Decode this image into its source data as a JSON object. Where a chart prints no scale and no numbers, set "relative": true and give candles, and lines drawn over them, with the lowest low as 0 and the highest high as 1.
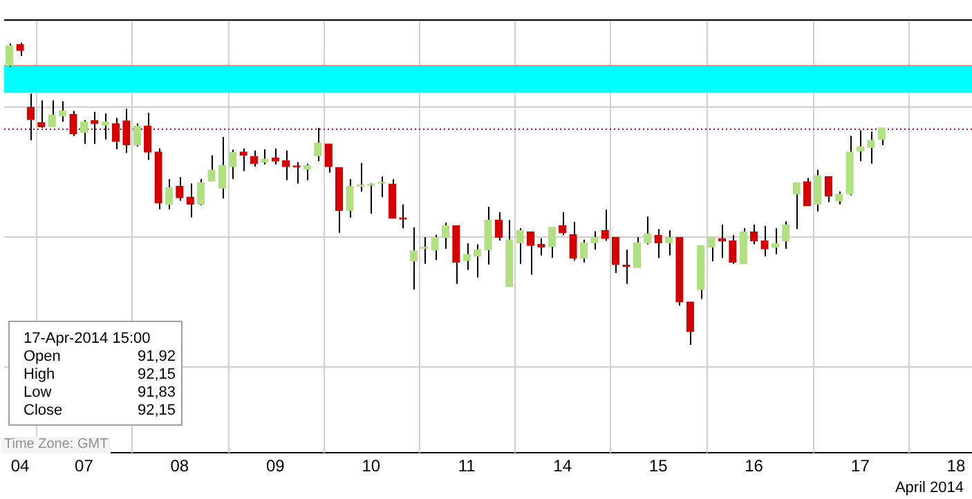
{
  "chart_data": {
    "type": "candlestick",
    "relative": true,
    "legend": false,
    "grid": true,
    "tick_labels": "x",
    "categories": [
      null,
      "04",
      null,
      null,
      null,
      null,
      null,
      "07",
      null,
      null,
      null,
      null,
      null,
      null,
      null,
      null,
      "08",
      null,
      null,
      null,
      null,
      null,
      null,
      null,
      null,
      "09",
      null,
      null,
      null,
      null,
      null,
      null,
      null,
      null,
      "10",
      null,
      null,
      null,
      null,
      null,
      null,
      null,
      null,
      "11",
      null,
      null,
      null,
      null,
      null,
      null,
      null,
      null,
      "14",
      null,
      null,
      null,
      null,
      null,
      null,
      null,
      null,
      "15",
      null,
      null,
      null,
      null,
      null,
      null,
      null,
      null,
      "16",
      null,
      null,
      null,
      null,
      null,
      null,
      null,
      null,
      null,
      "17",
      null,
      null,
      null,
      null,
      null,
      null,
      null,
      null,
      "18",
      null
    ],
    "ohlc": [
      [
        0.924,
        0.997,
        0.92,
        0.99
      ],
      [
        0.994,
        1.0,
        0.956,
        0.974
      ],
      [
        0.786,
        0.831,
        0.677,
        0.745
      ],
      [
        0.736,
        0.809,
        0.718,
        0.721
      ],
      [
        0.721,
        0.809,
        0.721,
        0.76
      ],
      [
        0.757,
        0.806,
        0.738,
        0.774
      ],
      [
        0.763,
        0.774,
        0.691,
        0.698
      ],
      [
        0.703,
        0.744,
        0.665,
        0.738
      ],
      [
        0.742,
        0.771,
        0.665,
        0.732
      ],
      [
        0.727,
        0.766,
        0.68,
        0.738
      ],
      [
        0.732,
        0.751,
        0.647,
        0.673
      ],
      [
        0.741,
        0.781,
        0.635,
        0.662
      ],
      [
        0.662,
        0.733,
        0.657,
        0.724
      ],
      [
        0.724,
        0.768,
        0.612,
        0.638
      ],
      [
        0.638,
        0.65,
        0.449,
        0.469
      ],
      [
        0.465,
        0.548,
        0.449,
        0.52
      ],
      [
        0.525,
        0.555,
        0.477,
        0.487
      ],
      [
        0.489,
        0.534,
        0.422,
        0.465
      ],
      [
        0.465,
        0.549,
        0.462,
        0.537
      ],
      [
        0.542,
        0.627,
        0.542,
        0.578
      ],
      [
        0.519,
        0.688,
        0.484,
        0.593
      ],
      [
        0.59,
        0.646,
        0.549,
        0.637
      ],
      [
        0.638,
        0.65,
        0.575,
        0.628
      ],
      [
        0.623,
        0.643,
        0.59,
        0.6
      ],
      [
        0.605,
        0.647,
        0.597,
        0.615
      ],
      [
        0.618,
        0.65,
        0.597,
        0.608
      ],
      [
        0.609,
        0.643,
        0.545,
        0.59
      ],
      [
        0.59,
        0.605,
        0.534,
        0.588
      ],
      [
        0.581,
        0.6,
        0.545,
        0.593
      ],
      [
        0.626,
        0.718,
        0.608,
        0.668
      ],
      [
        0.665,
        0.665,
        0.57,
        0.59
      ],
      [
        0.587,
        0.587,
        0.371,
        0.445
      ],
      [
        0.445,
        0.548,
        0.421,
        0.525
      ],
      [
        0.525,
        0.602,
        0.507,
        0.528
      ],
      [
        0.528,
        0.534,
        0.434,
        0.53
      ],
      [
        0.535,
        0.557,
        0.489,
        0.537
      ],
      [
        0.532,
        0.548,
        0.419,
        0.419
      ],
      [
        0.419,
        0.465,
        0.386,
        0.416
      ],
      [
        0.278,
        0.389,
        0.183,
        0.311
      ],
      [
        0.319,
        0.356,
        0.268,
        0.322
      ],
      [
        0.314,
        0.364,
        0.281,
        0.356
      ],
      [
        0.356,
        0.404,
        0.318,
        0.394
      ],
      [
        0.394,
        0.394,
        0.202,
        0.273
      ],
      [
        0.279,
        0.336,
        0.248,
        0.299
      ],
      [
        0.293,
        0.333,
        0.223,
        0.315
      ],
      [
        0.315,
        0.457,
        0.266,
        0.413
      ],
      [
        0.413,
        0.439,
        0.345,
        0.356
      ],
      [
        0.193,
        0.413,
        0.193,
        0.348
      ],
      [
        0.338,
        0.386,
        0.268,
        0.379
      ],
      [
        0.374,
        0.374,
        0.232,
        0.329
      ],
      [
        0.333,
        0.353,
        0.296,
        0.324
      ],
      [
        0.326,
        0.389,
        0.288,
        0.389
      ],
      [
        0.394,
        0.439,
        0.363,
        0.371
      ],
      [
        0.365,
        0.407,
        0.279,
        0.287
      ],
      [
        0.287,
        0.348,
        0.273,
        0.338
      ],
      [
        0.338,
        0.376,
        0.315,
        0.356
      ],
      [
        0.379,
        0.447,
        0.344,
        0.352
      ],
      [
        0.356,
        0.356,
        0.238,
        0.266
      ],
      [
        0.262,
        0.315,
        0.202,
        0.259
      ],
      [
        0.256,
        0.356,
        0.256,
        0.338
      ],
      [
        0.338,
        0.424,
        0.333,
        0.368
      ],
      [
        0.363,
        0.383,
        0.287,
        0.338
      ],
      [
        0.338,
        0.379,
        0.296,
        0.356
      ],
      [
        0.356,
        0.356,
        0.13,
        0.142
      ],
      [
        0.142,
        0.142,
        0.0,
        0.044
      ],
      [
        0.183,
        0.329,
        0.152,
        0.329
      ],
      [
        0.324,
        0.356,
        0.277,
        0.356
      ],
      [
        0.352,
        0.398,
        0.287,
        0.344
      ],
      [
        0.344,
        0.363,
        0.268,
        0.273
      ],
      [
        0.268,
        0.386,
        0.268,
        0.374
      ],
      [
        0.374,
        0.398,
        0.333,
        0.344
      ],
      [
        0.344,
        0.394,
        0.293,
        0.318
      ],
      [
        0.323,
        0.386,
        0.3,
        0.336
      ],
      [
        0.344,
        0.409,
        0.318,
        0.397
      ],
      [
        0.499,
        0.537,
        0.383,
        0.537
      ],
      [
        0.54,
        0.552,
        0.46,
        0.46
      ],
      [
        0.465,
        0.579,
        0.442,
        0.56
      ],
      [
        0.557,
        0.557,
        0.472,
        0.492
      ],
      [
        0.477,
        0.507,
        0.465,
        0.499
      ],
      [
        0.499,
        0.692,
        0.495,
        0.638
      ],
      [
        0.641,
        0.71,
        0.608,
        0.655
      ],
      [
        0.653,
        0.706,
        0.6,
        0.677
      ],
      [
        0.68,
        0.718,
        0.661,
        0.718
      ],
      null,
      null,
      null,
      null,
      null,
      null,
      null,
      null
    ],
    "colors": [
      "#b0e080",
      "#d40000",
      "#d40000",
      "#d40000",
      "#b0e080",
      "#b0e080",
      "#d40000",
      "#b0e080",
      "#d40000",
      "#b0e080",
      "#d40000",
      "#d40000",
      "#b0e080",
      "#d40000",
      "#d40000",
      "#b0e080",
      "#d40000",
      "#d40000",
      "#b0e080",
      "#b0e080",
      "#b0e080",
      "#b0e080",
      "#d40000",
      "#d40000",
      "#b0e080",
      "#d40000",
      "#d40000",
      "#d40000",
      "#b0e080",
      "#b0e080",
      "#d40000",
      "#d40000",
      "#b0e080",
      "#b0e080",
      "#b0e080",
      "#b0e080",
      "#d40000",
      "#d40000",
      "#b0e080",
      "#b0e080",
      "#b0e080",
      "#b0e080",
      "#d40000",
      "#b0e080",
      "#b0e080",
      "#b0e080",
      "#d40000",
      "#b0e080",
      "#b0e080",
      "#d40000",
      "#d40000",
      "#b0e080",
      "#d40000",
      "#d40000",
      "#b0e080",
      "#b0e080",
      "#d40000",
      "#d40000",
      "#d40000",
      "#b0e080",
      "#b0e080",
      "#d40000",
      "#b0e080",
      "#d40000",
      "#d40000",
      "#b0e080",
      "#b0e080",
      "#d40000",
      "#d40000",
      "#b0e080",
      "#d40000",
      "#d40000",
      "#b0e080",
      "#b0e080",
      "#b0e080",
      "#d40000",
      "#b0e080",
      "#d40000",
      "#b0e080",
      "#b0e080",
      "#b0e080",
      "#b0e080",
      "#b0e080",
      null,
      null,
      null,
      null,
      null,
      null,
      null,
      null
    ],
    "bands": [
      {
        "axis": "y",
        "from": 0.834,
        "to": 0.924,
        "color": "#00ffff"
      }
    ],
    "ref_lines": [
      {
        "axis": "y",
        "value": 0.928,
        "color": "#ff8080",
        "line_style": "solid"
      },
      {
        "axis": "y",
        "value": 0.718,
        "color": "#cc0033",
        "line_style": "dotted"
      }
    ],
    "annotations": [
      "17-Apr-2014 15:00",
      "Open",
      "91,92",
      "High",
      "92,15",
      "Low",
      "91,83",
      "Close",
      "92,15",
      "Time Zone: GMT",
      "April 2014"
    ]
  }
}
